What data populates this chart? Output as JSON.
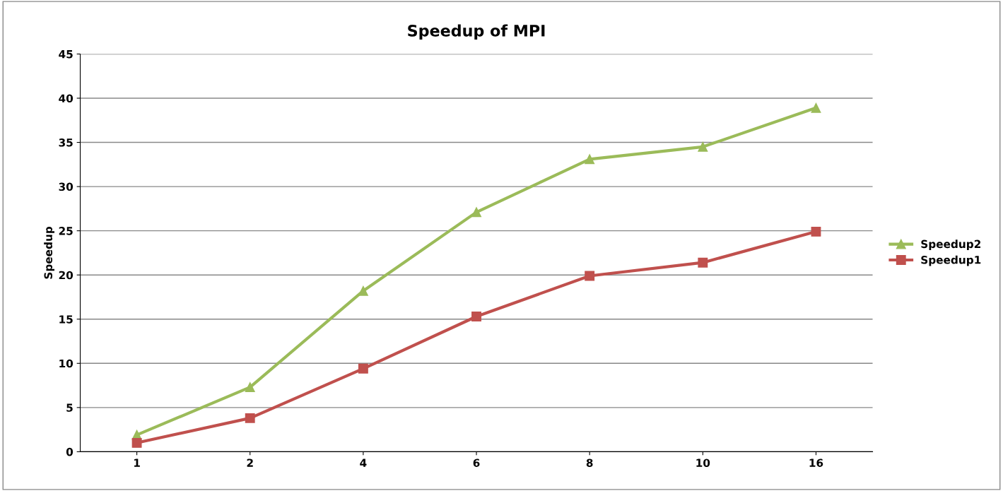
{
  "chart_data": {
    "type": "line",
    "title": "Speedup of MPI",
    "ylabel": "Speedup",
    "categories": [
      "1",
      "2",
      "4",
      "6",
      "8",
      "10",
      "16"
    ],
    "series": [
      {
        "name": "Speedup2",
        "color": "#9bbb59",
        "marker": "triangle",
        "values": [
          1.9,
          7.3,
          18.2,
          27.1,
          33.1,
          34.5,
          38.9
        ]
      },
      {
        "name": "Speedup1",
        "color": "#c0504d",
        "marker": "square",
        "values": [
          1.0,
          3.8,
          9.4,
          15.3,
          19.9,
          21.4,
          24.9
        ]
      }
    ],
    "ylim": [
      0,
      45
    ],
    "yticks": [
      0,
      5,
      10,
      15,
      20,
      25,
      30,
      35,
      40,
      45
    ],
    "grid": "y",
    "legend": "right"
  }
}
